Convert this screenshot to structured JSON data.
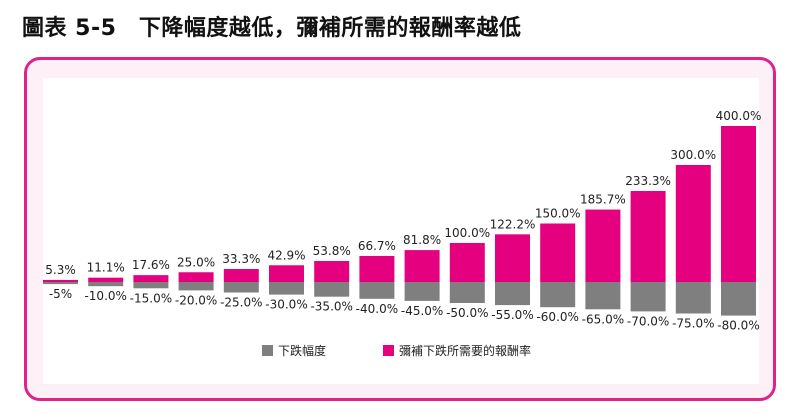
{
  "figure": {
    "title": "圖表 5-5　下降幅度越低，彌補所需的報酬率越低"
  },
  "colors": {
    "accent": "#e0238a",
    "declineBar": "#7f7f7f",
    "recoveryBar": "#e4007f"
  },
  "chart_data": {
    "type": "bar",
    "categories": [
      "5%",
      "10%",
      "15%",
      "20%",
      "25%",
      "30%",
      "35%",
      "40%",
      "45%",
      "50%",
      "55%",
      "60%",
      "65%",
      "70%",
      "75%",
      "80%"
    ],
    "series": [
      {
        "name": "下跌幅度",
        "values": [
          -5,
          -10,
          -15,
          -20,
          -25,
          -30,
          -35,
          -40,
          -45,
          -50,
          -55,
          -60,
          -65,
          -70,
          -75,
          -80
        ],
        "labels": [
          "-5%",
          "-10.0%",
          "-15.0%",
          "-20.0%",
          "-25.0%",
          "-30.0%",
          "-35.0%",
          "-40.0%",
          "-45.0%",
          "-50.0%",
          "-55.0%",
          "-60.0%",
          "-65.0%",
          "-70.0%",
          "-75.0%",
          "-80.0%"
        ]
      },
      {
        "name": "彌補下跌所需要的報酬率",
        "values": [
          5.3,
          11.1,
          17.6,
          25.0,
          33.3,
          42.9,
          53.8,
          66.7,
          81.8,
          100.0,
          122.2,
          150.0,
          185.7,
          233.3,
          300.0,
          400.0
        ],
        "labels": [
          "5.3%",
          "11.1%",
          "17.6%",
          "25.0%",
          "33.3%",
          "42.9%",
          "53.8%",
          "66.7%",
          "81.8%",
          "100.0%",
          "122.2%",
          "150.0%",
          "185.7%",
          "233.3%",
          "300.0%",
          "400.0%"
        ]
      }
    ],
    "title": "",
    "xlabel": "",
    "ylabel": "",
    "ylim": [
      -80,
      400
    ],
    "grid": false,
    "legend": "bottom-center"
  }
}
